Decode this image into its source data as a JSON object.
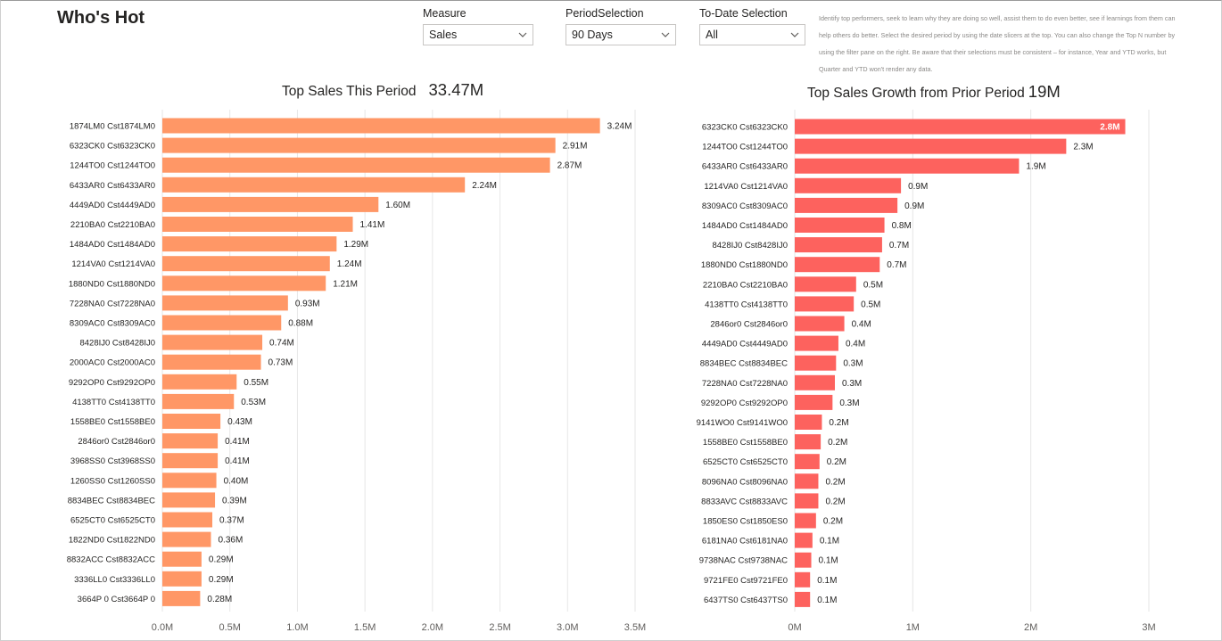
{
  "header": {
    "title": "Who's Hot"
  },
  "slicers": [
    {
      "label": "Measure",
      "value": "Sales"
    },
    {
      "label": "PeriodSelection",
      "value": "90 Days"
    },
    {
      "label": "To-Date Selection",
      "value": "All"
    }
  ],
  "description": "Identify top performers, seek to learn why they are doing so well, assist them to do even better, see if learnings from them can help others do better. Select the desired period by using the date slicers at the top. You can also change the Top N number by using the filter pane on the right. Be aware that their selections must be consistent – for instance, Year and YTD works, but Quarter and YTD won't render any data.",
  "colors": {
    "left_bar": "#FF9766",
    "right_bar": "#FD625E",
    "grid": "#e6e6e6",
    "axis_text": "#605e5c"
  },
  "chart_data": [
    {
      "type": "bar",
      "orientation": "horizontal",
      "title": "Top Sales This Period",
      "total_label": "33.47M",
      "categories": [
        "1874LM0 Cst1874LM0",
        "6323CK0 Cst6323CK0",
        "1244TO0 Cst1244TO0",
        "6433AR0 Cst6433AR0",
        "4449AD0 Cst4449AD0",
        "2210BA0 Cst2210BA0",
        "1484AD0 Cst1484AD0",
        "1214VA0 Cst1214VA0",
        "1880ND0 Cst1880ND0",
        "7228NA0 Cst7228NA0",
        "8309AC0 Cst8309AC0",
        "8428IJ0 Cst8428IJ0",
        "2000AC0 Cst2000AC0",
        "9292OP0 Cst9292OP0",
        "4138TT0 Cst4138TT0",
        "1558BE0 Cst1558BE0",
        "2846or0 Cst2846or0",
        "3968SS0 Cst3968SS0",
        "1260SS0 Cst1260SS0",
        "8834BEC Cst8834BEC",
        "6525CT0 Cst6525CT0",
        "1822ND0 Cst1822ND0",
        "8832ACC Cst8832ACC",
        "3336LL0 Cst3336LL0",
        "3664P 0 Cst3664P 0"
      ],
      "values": [
        3.24,
        2.91,
        2.87,
        2.24,
        1.6,
        1.41,
        1.29,
        1.24,
        1.21,
        0.93,
        0.88,
        0.74,
        0.73,
        0.55,
        0.53,
        0.43,
        0.41,
        0.41,
        0.4,
        0.39,
        0.37,
        0.36,
        0.29,
        0.29,
        0.28
      ],
      "data_labels": [
        "3.24M",
        "2.91M",
        "2.87M",
        "2.24M",
        "1.60M",
        "1.41M",
        "1.29M",
        "1.24M",
        "1.21M",
        "0.93M",
        "0.88M",
        "0.74M",
        "0.73M",
        "0.55M",
        "0.53M",
        "0.43M",
        "0.41M",
        "0.41M",
        "0.40M",
        "0.39M",
        "0.37M",
        "0.36M",
        "0.29M",
        "0.29M",
        "0.28M"
      ],
      "xlim": [
        0,
        3.5
      ],
      "xticks": [
        0,
        0.5,
        1.0,
        1.5,
        2.0,
        2.5,
        3.0,
        3.5
      ],
      "xtick_labels": [
        "0.0M",
        "0.5M",
        "1.0M",
        "1.5M",
        "2.0M",
        "2.5M",
        "3.0M",
        "3.5M"
      ],
      "unit": "M",
      "grid": true
    },
    {
      "type": "bar",
      "orientation": "horizontal",
      "title": "Top Sales Growth from Prior Period",
      "total_label": "19M",
      "categories": [
        "6323CK0 Cst6323CK0",
        "1244TO0 Cst1244TO0",
        "6433AR0 Cst6433AR0",
        "1214VA0 Cst1214VA0",
        "8309AC0 Cst8309AC0",
        "1484AD0 Cst1484AD0",
        "8428IJ0 Cst8428IJ0",
        "1880ND0 Cst1880ND0",
        "2210BA0 Cst2210BA0",
        "4138TT0 Cst4138TT0",
        "2846or0 Cst2846or0",
        "4449AD0 Cst4449AD0",
        "8834BEC Cst8834BEC",
        "7228NA0 Cst7228NA0",
        "9292OP0 Cst9292OP0",
        "9141WO0 Cst9141WO0",
        "1558BE0 Cst1558BE0",
        "6525CT0 Cst6525CT0",
        "8096NA0 Cst8096NA0",
        "8833AVC Cst8833AVC",
        "1850ES0 Cst1850ES0",
        "6181NA0 Cst6181NA0",
        "9738NAC Cst9738NAC",
        "9721FE0 Cst9721FE0",
        "6437TS0 Cst6437TS0"
      ],
      "values": [
        2.8,
        2.3,
        1.9,
        0.9,
        0.87,
        0.76,
        0.74,
        0.72,
        0.52,
        0.5,
        0.42,
        0.37,
        0.35,
        0.34,
        0.32,
        0.23,
        0.22,
        0.21,
        0.2,
        0.2,
        0.18,
        0.15,
        0.14,
        0.13,
        0.13
      ],
      "data_labels": [
        "2.8M",
        "2.3M",
        "1.9M",
        "0.9M",
        "0.9M",
        "0.8M",
        "0.7M",
        "0.7M",
        "0.5M",
        "0.5M",
        "0.4M",
        "0.4M",
        "0.3M",
        "0.3M",
        "0.3M",
        "0.2M",
        "0.2M",
        "0.2M",
        "0.2M",
        "0.2M",
        "0.2M",
        "0.1M",
        "0.1M",
        "0.1M",
        "0.1M"
      ],
      "xlim": [
        0,
        3
      ],
      "xticks": [
        0,
        1,
        2,
        3
      ],
      "xtick_labels": [
        "0M",
        "1M",
        "2M",
        "3M"
      ],
      "unit": "M",
      "grid": true
    }
  ]
}
